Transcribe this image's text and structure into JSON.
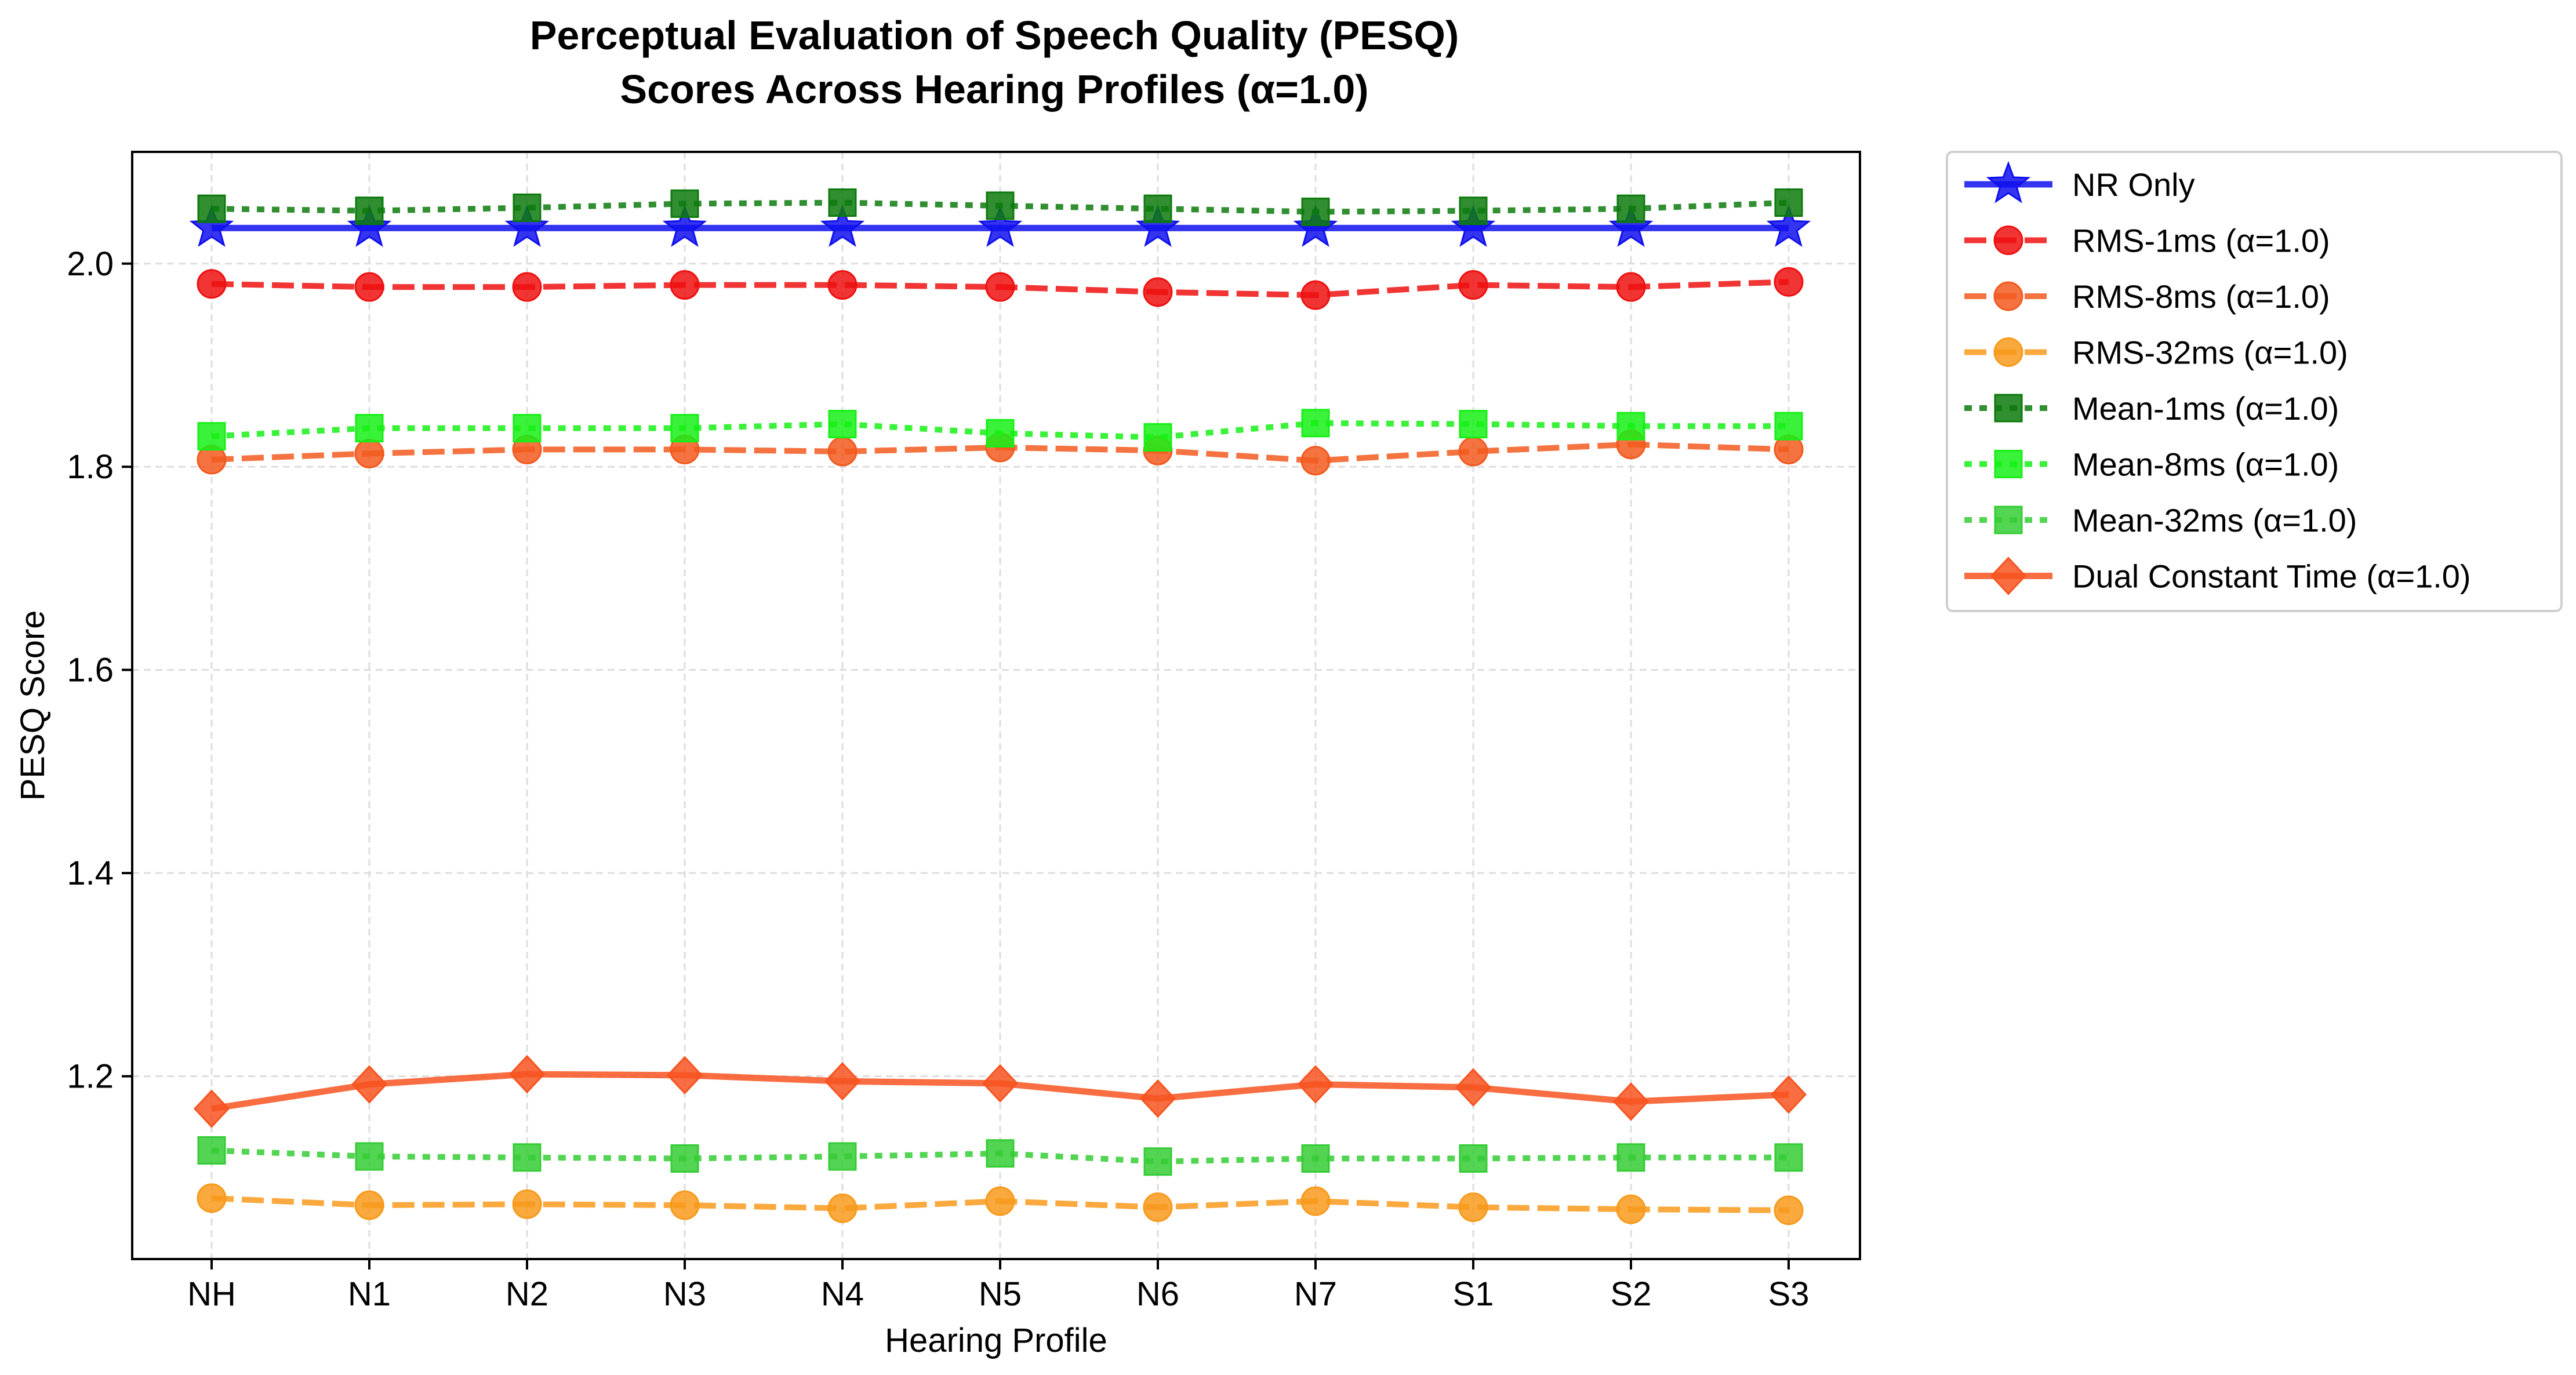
{
  "chart_data": {
    "type": "line",
    "title_line1": "Perceptual Evaluation of Speech Quality (PESQ)",
    "title_line2": "Scores Across Hearing Profiles (α=1.0)",
    "xlabel": "Hearing Profile",
    "ylabel": "PESQ Score",
    "categories": [
      "NH",
      "N1",
      "N2",
      "N3",
      "N4",
      "N5",
      "N6",
      "N7",
      "S1",
      "S2",
      "S3"
    ],
    "ylim": [
      1.02,
      2.11
    ],
    "yticks": [
      "1.2",
      "1.4",
      "1.6",
      "1.8",
      "2.0"
    ],
    "grid": true,
    "legend_position": "outside right",
    "series": [
      {
        "name": "NR Only",
        "color": "#1010ee",
        "marker": "star",
        "line": "solid",
        "values": [
          2.035,
          2.035,
          2.035,
          2.035,
          2.035,
          2.035,
          2.035,
          2.035,
          2.035,
          2.035,
          2.035
        ]
      },
      {
        "name": "RMS-1ms (α=1.0)",
        "color": "#ee1111",
        "marker": "circle",
        "line": "dashed",
        "values": [
          1.98,
          1.977,
          1.977,
          1.979,
          1.979,
          1.977,
          1.972,
          1.969,
          1.979,
          1.977,
          1.982
        ]
      },
      {
        "name": "RMS-8ms (α=1.0)",
        "color": "#f25a1f",
        "marker": "circle",
        "line": "dashed",
        "values": [
          1.807,
          1.813,
          1.817,
          1.817,
          1.815,
          1.819,
          1.816,
          1.806,
          1.815,
          1.822,
          1.817
        ]
      },
      {
        "name": "RMS-32ms (α=1.0)",
        "color": "#f89a1c",
        "marker": "circle",
        "line": "dashed",
        "values": [
          1.08,
          1.073,
          1.074,
          1.073,
          1.07,
          1.077,
          1.071,
          1.077,
          1.071,
          1.069,
          1.068
        ]
      },
      {
        "name": "Mean-1ms (α=1.0)",
        "color": "#0d7a0d",
        "marker": "square",
        "line": "dotted",
        "values": [
          2.054,
          2.052,
          2.055,
          2.059,
          2.06,
          2.057,
          2.054,
          2.051,
          2.052,
          2.054,
          2.06
        ]
      },
      {
        "name": "Mean-8ms (α=1.0)",
        "color": "#16f016",
        "marker": "square",
        "line": "dotted",
        "values": [
          1.83,
          1.838,
          1.838,
          1.838,
          1.842,
          1.833,
          1.829,
          1.843,
          1.842,
          1.84,
          1.84
        ]
      },
      {
        "name": "Mean-32ms (α=1.0)",
        "color": "#35cc35",
        "marker": "square",
        "line": "dotted",
        "values": [
          1.127,
          1.121,
          1.12,
          1.119,
          1.121,
          1.124,
          1.116,
          1.119,
          1.119,
          1.12,
          1.12
        ]
      },
      {
        "name": "Dual Constant Time (α=1.0)",
        "color": "#f75420",
        "marker": "diamond",
        "line": "solid",
        "values": [
          1.168,
          1.192,
          1.202,
          1.201,
          1.195,
          1.193,
          1.178,
          1.192,
          1.189,
          1.175,
          1.182
        ]
      }
    ]
  }
}
